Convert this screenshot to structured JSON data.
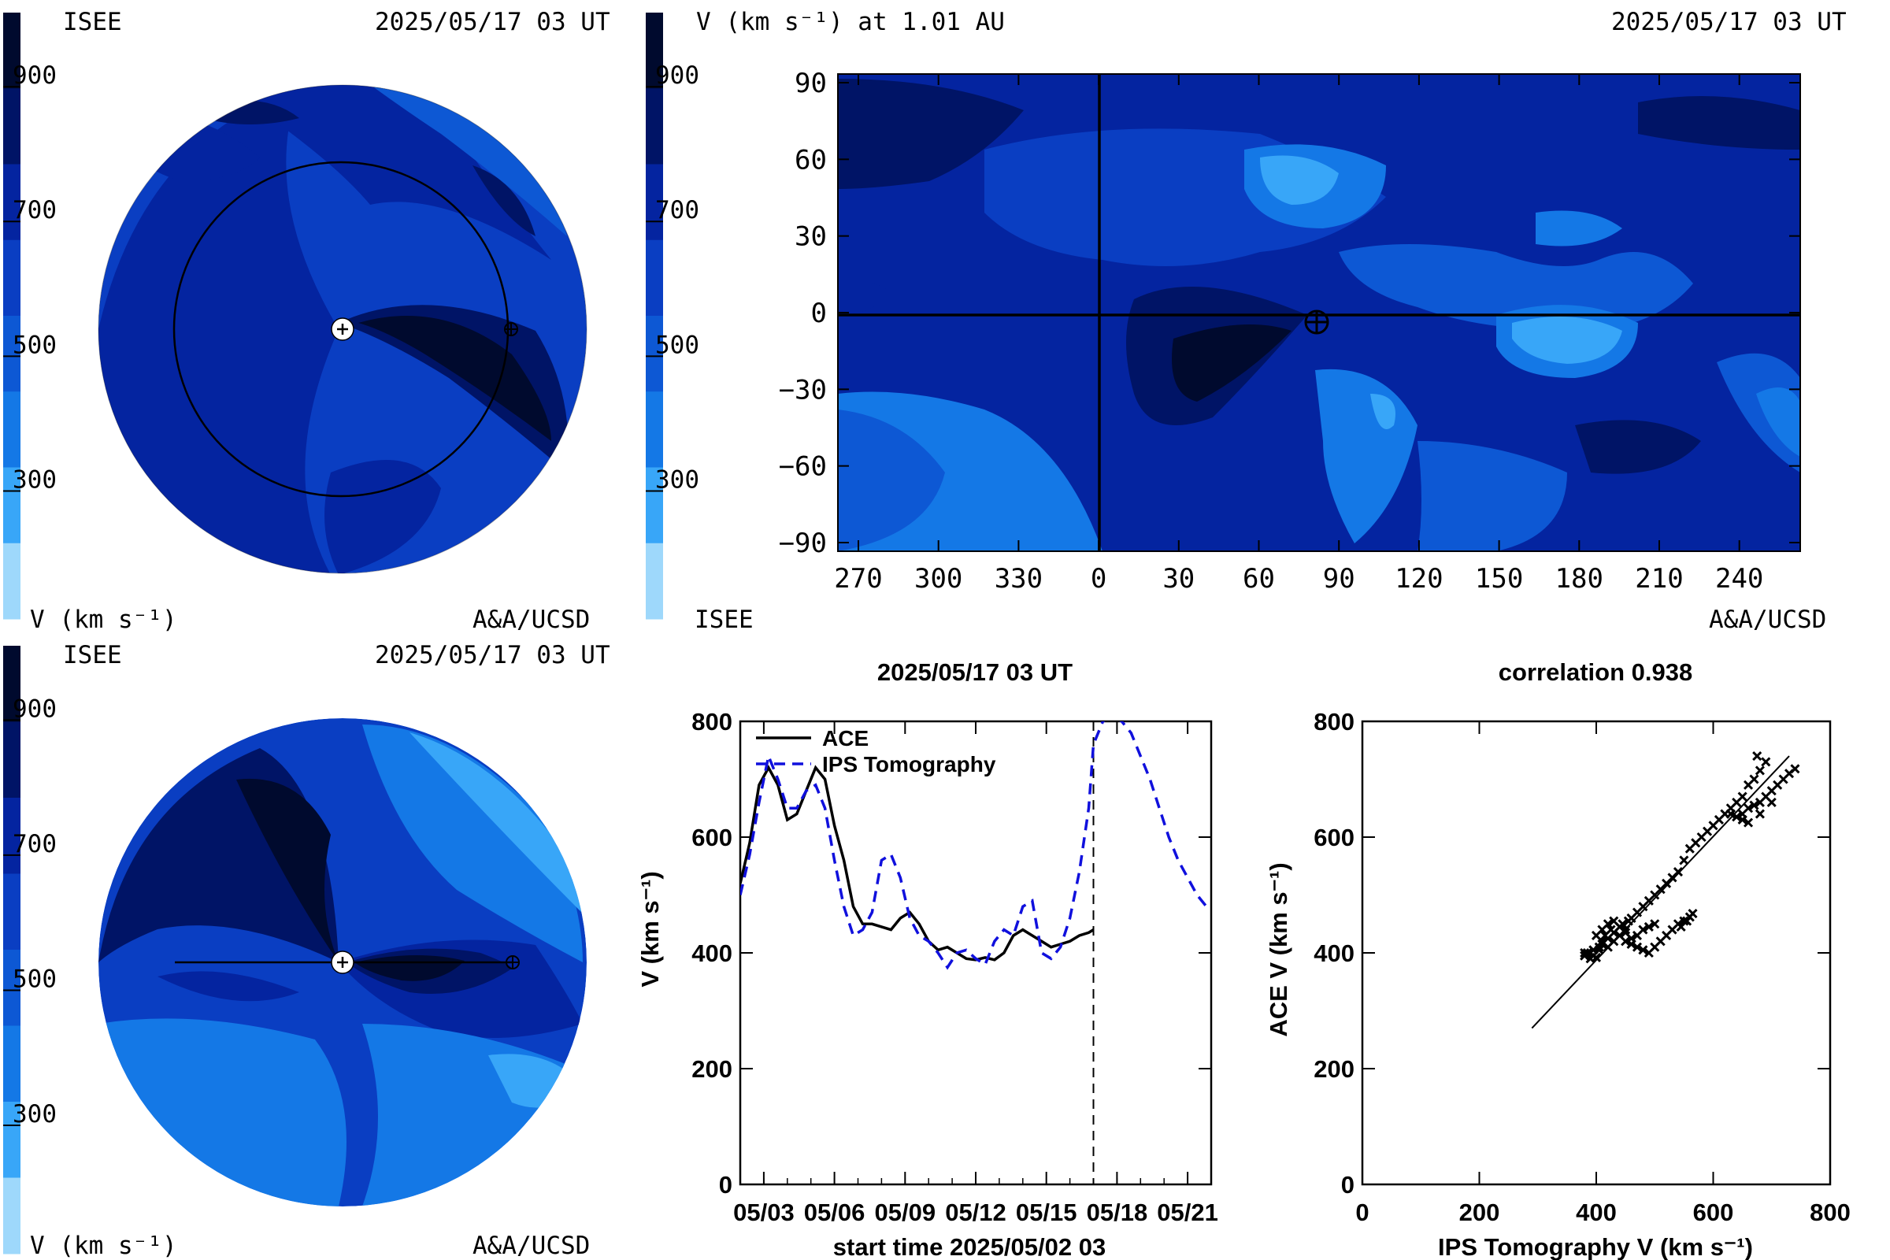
{
  "palette": [
    "#000a2e",
    "#001466",
    "#0424a0",
    "#0a3ec2",
    "#0d58d4",
    "#1478e6",
    "#38a6f8",
    "#9ed8fb"
  ],
  "colorbar_ticks": [
    "900",
    "700",
    "500",
    "300"
  ],
  "panels": {
    "top_left": {
      "org": "ISEE",
      "timestamp": "2025/05/17 03 UT",
      "units": "V (km s⁻¹)",
      "credit": "A&A/UCSD"
    },
    "bottom_left": {
      "org": "ISEE",
      "timestamp": "2025/05/17 03 UT",
      "units": "V (km s⁻¹)",
      "credit": "A&A/UCSD"
    },
    "top_right": {
      "title": "V (km s⁻¹) at 1.01 AU",
      "timestamp": "2025/05/17 03 UT",
      "org": "ISEE",
      "credit": "A&A/UCSD"
    }
  },
  "chart_data": [
    {
      "type": "heatmap",
      "x_ticks": [
        "270",
        "300",
        "330",
        "0",
        "30",
        "60",
        "90",
        "120",
        "150",
        "180",
        "210",
        "240"
      ],
      "y_ticks": [
        "90",
        "60",
        "30",
        "0",
        "−30",
        "−60",
        "−90"
      ]
    },
    {
      "type": "line",
      "title": "2025/05/17 03 UT",
      "xlabel": "start time 2025/05/02 03",
      "ylabel": "V (km s⁻¹)",
      "xlim": [
        0,
        20
      ],
      "ylim": [
        0,
        800
      ],
      "x_ticks": [
        "05/03",
        "05/06",
        "05/09",
        "05/12",
        "05/15",
        "05/18",
        "05/21"
      ],
      "y_ticks": [
        "0",
        "200",
        "400",
        "600",
        "800"
      ],
      "marker_day": 15.0,
      "series": [
        {
          "name": "ACE",
          "color": "#000000",
          "x": [
            0,
            0.4,
            0.8,
            1.2,
            1.6,
            2.0,
            2.4,
            2.8,
            3.2,
            3.6,
            4.0,
            4.4,
            4.8,
            5.2,
            5.6,
            6.0,
            6.4,
            6.8,
            7.2,
            7.6,
            8.0,
            8.4,
            8.8,
            9.2,
            9.6,
            10.0,
            10.4,
            10.8,
            11.2,
            11.6,
            12.0,
            12.4,
            12.8,
            13.2,
            13.6,
            14.0,
            14.4,
            14.8,
            15.0
          ],
          "y": [
            520,
            590,
            690,
            720,
            690,
            630,
            640,
            680,
            720,
            700,
            620,
            560,
            480,
            450,
            450,
            445,
            440,
            460,
            470,
            450,
            420,
            405,
            410,
            400,
            390,
            388,
            392,
            388,
            400,
            430,
            440,
            430,
            420,
            410,
            415,
            420,
            430,
            435,
            440
          ]
        },
        {
          "name": "IPS Tomography",
          "color": "#1010dd",
          "x": [
            0,
            0.4,
            0.8,
            1.2,
            1.6,
            2.0,
            2.4,
            2.8,
            3.2,
            3.6,
            4.0,
            4.4,
            4.8,
            5.2,
            5.6,
            6.0,
            6.4,
            6.8,
            7.2,
            7.6,
            8.0,
            8.4,
            8.8,
            9.2,
            9.6,
            10.0,
            10.4,
            10.8,
            11.2,
            11.6,
            12.0,
            12.4,
            12.8,
            13.2,
            13.6,
            14.0,
            14.4,
            14.8,
            15.0,
            15.4,
            15.8,
            16.2,
            16.6,
            17.0,
            17.4,
            17.8,
            18.2,
            18.6,
            19.0,
            19.4,
            19.8
          ],
          "y": [
            500,
            570,
            660,
            740,
            700,
            650,
            650,
            680,
            690,
            650,
            560,
            480,
            430,
            440,
            470,
            560,
            570,
            530,
            460,
            430,
            420,
            400,
            375,
            400,
            405,
            390,
            380,
            420,
            440,
            430,
            480,
            490,
            400,
            390,
            410,
            460,
            540,
            650,
            760,
            800,
            810,
            800,
            780,
            740,
            700,
            650,
            600,
            560,
            530,
            500,
            480
          ]
        }
      ]
    },
    {
      "type": "scatter",
      "title": "correlation 0.938",
      "xlabel": "IPS Tomography V (km s⁻¹)",
      "ylabel": "ACE V (km s⁻¹)",
      "xlim": [
        0,
        800
      ],
      "ylim": [
        0,
        800
      ],
      "x_ticks": [
        "0",
        "200",
        "400",
        "600",
        "800"
      ],
      "y_ticks": [
        "0",
        "200",
        "400",
        "600",
        "800"
      ],
      "fit_line": [
        [
          290,
          270
        ],
        [
          730,
          740
        ]
      ],
      "points": [
        [
          380,
          395
        ],
        [
          385,
          400
        ],
        [
          390,
          390
        ],
        [
          395,
          405
        ],
        [
          400,
          392
        ],
        [
          405,
          410
        ],
        [
          410,
          420
        ],
        [
          415,
          430
        ],
        [
          420,
          425
        ],
        [
          425,
          440
        ],
        [
          430,
          435
        ],
        [
          440,
          445
        ],
        [
          445,
          450
        ],
        [
          450,
          440
        ],
        [
          455,
          455
        ],
        [
          460,
          460
        ],
        [
          470,
          470
        ],
        [
          480,
          480
        ],
        [
          490,
          490
        ],
        [
          500,
          500
        ],
        [
          510,
          510
        ],
        [
          520,
          520
        ],
        [
          530,
          530
        ],
        [
          540,
          540
        ],
        [
          550,
          560
        ],
        [
          560,
          580
        ],
        [
          570,
          590
        ],
        [
          580,
          600
        ],
        [
          590,
          610
        ],
        [
          600,
          620
        ],
        [
          610,
          630
        ],
        [
          620,
          640
        ],
        [
          630,
          650
        ],
        [
          640,
          660
        ],
        [
          650,
          670
        ],
        [
          660,
          690
        ],
        [
          670,
          700
        ],
        [
          680,
          715
        ],
        [
          690,
          730
        ],
        [
          675,
          740
        ],
        [
          380,
          400
        ],
        [
          395,
          395
        ],
        [
          405,
          405
        ],
        [
          410,
          415
        ],
        [
          420,
          410
        ],
        [
          430,
          420
        ],
        [
          440,
          430
        ],
        [
          450,
          420
        ],
        [
          460,
          415
        ],
        [
          470,
          410
        ],
        [
          480,
          405
        ],
        [
          490,
          400
        ],
        [
          500,
          410
        ],
        [
          510,
          420
        ],
        [
          520,
          430
        ],
        [
          530,
          440
        ],
        [
          540,
          450
        ],
        [
          550,
          455
        ],
        [
          560,
          462
        ],
        [
          565,
          468
        ],
        [
          555,
          455
        ],
        [
          545,
          445
        ],
        [
          400,
          430
        ],
        [
          410,
          440
        ],
        [
          420,
          450
        ],
        [
          430,
          455
        ],
        [
          440,
          445
        ],
        [
          450,
          435
        ],
        [
          460,
          425
        ],
        [
          470,
          430
        ],
        [
          480,
          440
        ],
        [
          490,
          445
        ],
        [
          500,
          450
        ],
        [
          630,
          640
        ],
        [
          640,
          635
        ],
        [
          650,
          640
        ],
        [
          660,
          650
        ],
        [
          670,
          655
        ],
        [
          680,
          660
        ],
        [
          690,
          670
        ],
        [
          700,
          680
        ],
        [
          710,
          690
        ],
        [
          720,
          700
        ],
        [
          730,
          710
        ],
        [
          740,
          718
        ],
        [
          650,
          630
        ],
        [
          660,
          625
        ],
        [
          680,
          640
        ],
        [
          700,
          660
        ]
      ]
    }
  ]
}
